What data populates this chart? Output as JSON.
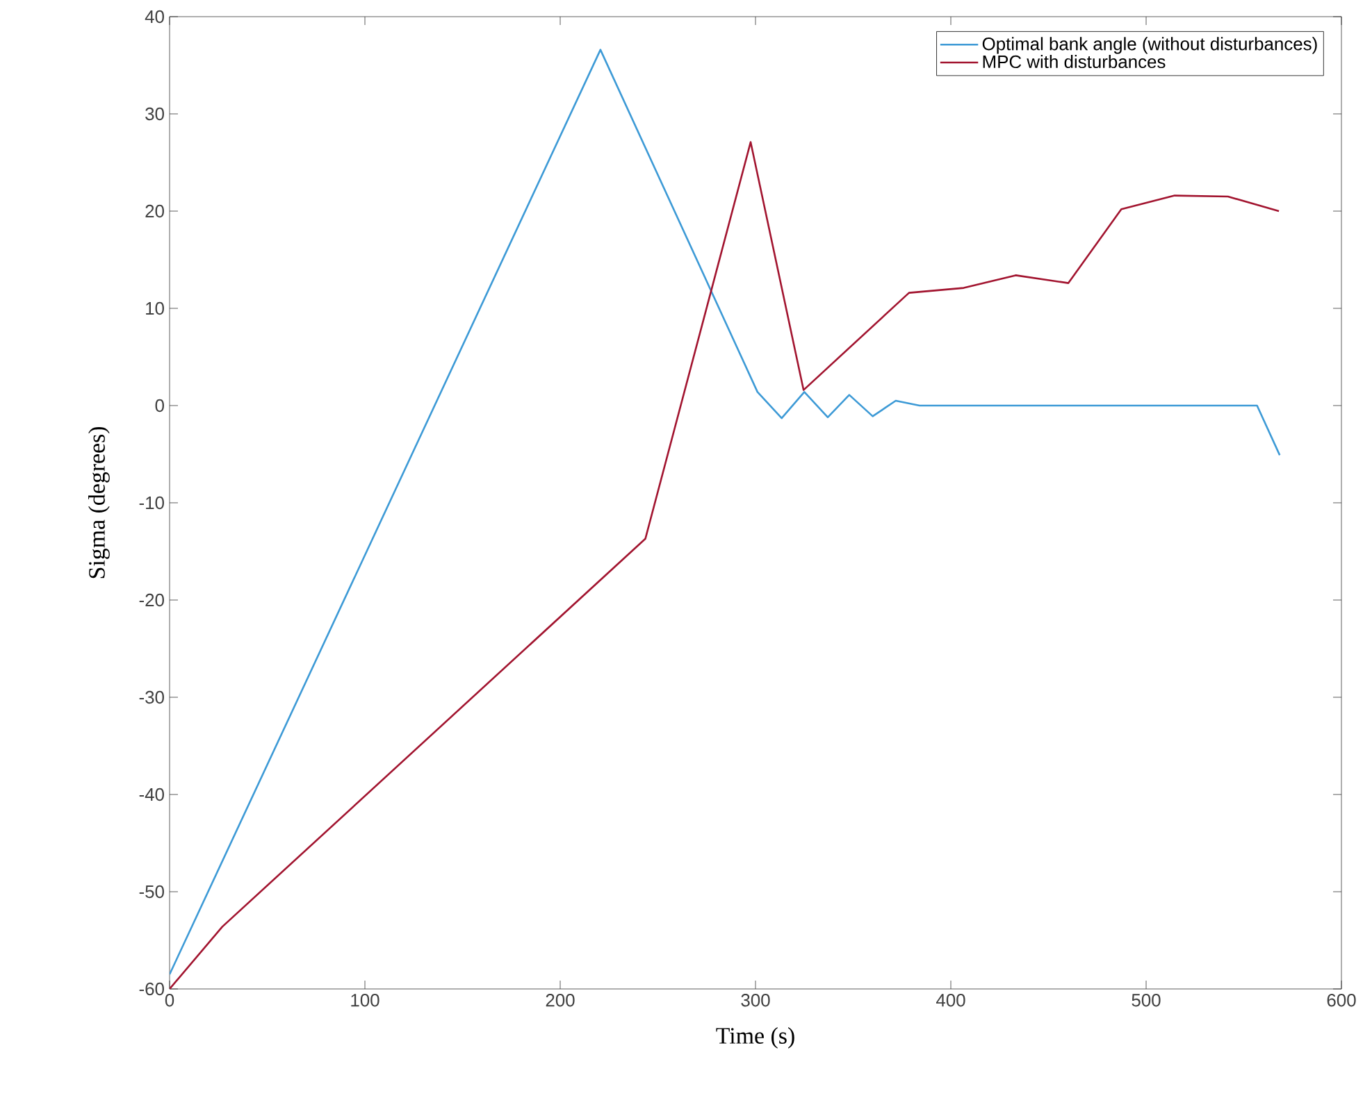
{
  "chart_data": {
    "type": "line",
    "xlabel": "Time (s)",
    "ylabel": "Sigma (degrees)",
    "xlim": [
      0,
      600
    ],
    "ylim": [
      -60,
      40
    ],
    "xticks": [
      0,
      100,
      200,
      300,
      400,
      500,
      600
    ],
    "yticks": [
      -60,
      -50,
      -40,
      -30,
      -20,
      -10,
      0,
      10,
      20,
      30,
      40
    ],
    "grid": false,
    "legend": "top right",
    "marker": "none",
    "line_style": "solid",
    "series": [
      {
        "name": "Optimal bank angle (without disturbances)",
        "color": "#3d9ad6",
        "x": [
          0,
          220.6,
          301,
          313.4,
          325,
          337,
          348,
          360,
          371.8,
          384,
          556.8,
          568.4
        ],
        "values": [
          -58.5,
          36.6,
          1.4,
          -1.3,
          1.4,
          -1.2,
          1.1,
          -1.1,
          0.5,
          0,
          0,
          -5.1
        ]
      },
      {
        "name": "MPC with disturbances",
        "color": "#a2142f",
        "x": [
          0,
          27,
          243.6,
          297.5,
          324.6,
          378.6,
          406.6,
          433.2,
          460.2,
          487.3,
          514.6,
          541.9,
          568
        ],
        "values": [
          -60,
          -53.6,
          -13.7,
          27.1,
          1.6,
          11.6,
          12.1,
          13.4,
          12.6,
          20.2,
          21.6,
          21.5,
          20
        ]
      }
    ]
  }
}
